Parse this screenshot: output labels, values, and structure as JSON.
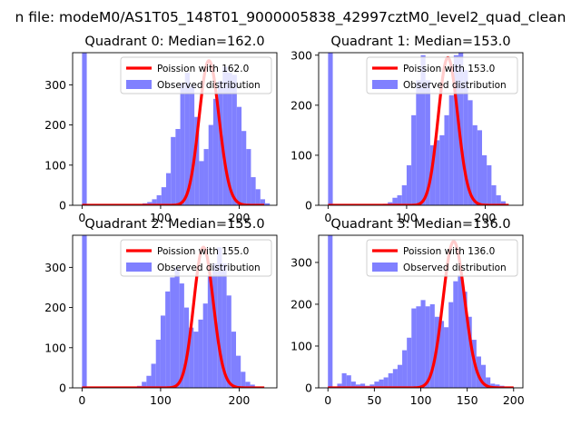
{
  "figure": {
    "suptitle": "n file: modeM0/AS1T05_148T01_9000005838_42997cztM0_level2_quad_clean"
  },
  "colors": {
    "hist": "#8080ff",
    "poisson": "#ff0000",
    "axis": "#000000",
    "legend_border": "#cccccc"
  },
  "chart_data": [
    {
      "type": "bar",
      "title": "Quadrant 0: Median=162.0",
      "xlim": [
        -12,
        248
      ],
      "ylim": [
        0,
        380
      ],
      "xticks": [
        0,
        100,
        200
      ],
      "yticks": [
        0,
        100,
        200,
        300
      ],
      "legend": {
        "placement": "top-right",
        "entries": [
          "Poission with 162.0",
          "Observed distribution"
        ]
      },
      "hist": {
        "bin_start": 77,
        "bin_width": 6,
        "values": [
          5,
          8,
          15,
          25,
          45,
          80,
          170,
          190,
          305,
          330,
          300,
          220,
          110,
          140,
          200,
          265,
          310,
          345,
          330,
          325,
          245,
          185,
          140,
          70,
          40,
          15,
          5
        ],
        "zero_bin": {
          "x": 0,
          "width": 6,
          "value": 380
        }
      },
      "poisson": {
        "lambda": 162,
        "peak": 360,
        "x_start": 0,
        "x_end": 232
      }
    },
    {
      "type": "bar",
      "title": "Quadrant 1: Median=153.0",
      "xlim": [
        -12,
        248
      ],
      "ylim": [
        0,
        305
      ],
      "xticks": [
        0,
        100,
        200
      ],
      "yticks": [
        0,
        100,
        200,
        300
      ],
      "legend": {
        "placement": "top-right",
        "entries": [
          "Poission with 153.0",
          "Observed distribution"
        ]
      },
      "hist": {
        "bin_start": 70,
        "bin_width": 6,
        "values": [
          3,
          6,
          15,
          20,
          40,
          80,
          180,
          250,
          300,
          250,
          120,
          130,
          140,
          180,
          220,
          300,
          310,
          270,
          210,
          160,
          150,
          100,
          80,
          40,
          20,
          8
        ],
        "zero_bin": {
          "x": 0,
          "width": 6,
          "value": 305
        }
      },
      "poisson": {
        "lambda": 153,
        "peak": 295,
        "x_start": 0,
        "x_end": 230
      }
    },
    {
      "type": "bar",
      "title": "Quadrant 2: Median=155.0",
      "xlim": [
        -12,
        248
      ],
      "ylim": [
        0,
        380
      ],
      "xticks": [
        0,
        100,
        200
      ],
      "yticks": [
        0,
        100,
        200,
        300
      ],
      "legend": {
        "placement": "top-right",
        "entries": [
          "Poission with 155.0",
          "Observed distribution"
        ]
      },
      "hist": {
        "bin_start": 70,
        "bin_width": 6,
        "values": [
          5,
          15,
          30,
          60,
          120,
          180,
          240,
          275,
          300,
          260,
          200,
          150,
          140,
          170,
          210,
          280,
          310,
          350,
          310,
          230,
          140,
          80,
          40,
          15,
          8,
          3
        ],
        "zero_bin": {
          "x": 0,
          "width": 6,
          "value": 380
        }
      },
      "poisson": {
        "lambda": 155,
        "peak": 350,
        "x_start": 0,
        "x_end": 232
      }
    },
    {
      "type": "bar",
      "title": "Quadrant 3: Median=136.0",
      "xlim": [
        -10,
        210
      ],
      "ylim": [
        0,
        365
      ],
      "xticks": [
        0,
        50,
        100,
        150,
        200
      ],
      "yticks": [
        0,
        100,
        200,
        300
      ],
      "legend": {
        "placement": "top-right",
        "entries": [
          "Poission with 136.0",
          "Observed distribution"
        ]
      },
      "hist": {
        "bin_start": 10,
        "bin_width": 5,
        "values": [
          10,
          35,
          30,
          15,
          8,
          10,
          5,
          8,
          15,
          20,
          25,
          35,
          45,
          55,
          90,
          120,
          190,
          195,
          210,
          195,
          200,
          170,
          160,
          145,
          205,
          255,
          270,
          230,
          170,
          115,
          75,
          55,
          25,
          10,
          8,
          5,
          3,
          2
        ],
        "zero_bin": {
          "x": 0,
          "width": 5,
          "value": 365
        }
      },
      "poisson": {
        "lambda": 136,
        "peak": 350,
        "x_start": 0,
        "x_end": 200
      }
    }
  ]
}
